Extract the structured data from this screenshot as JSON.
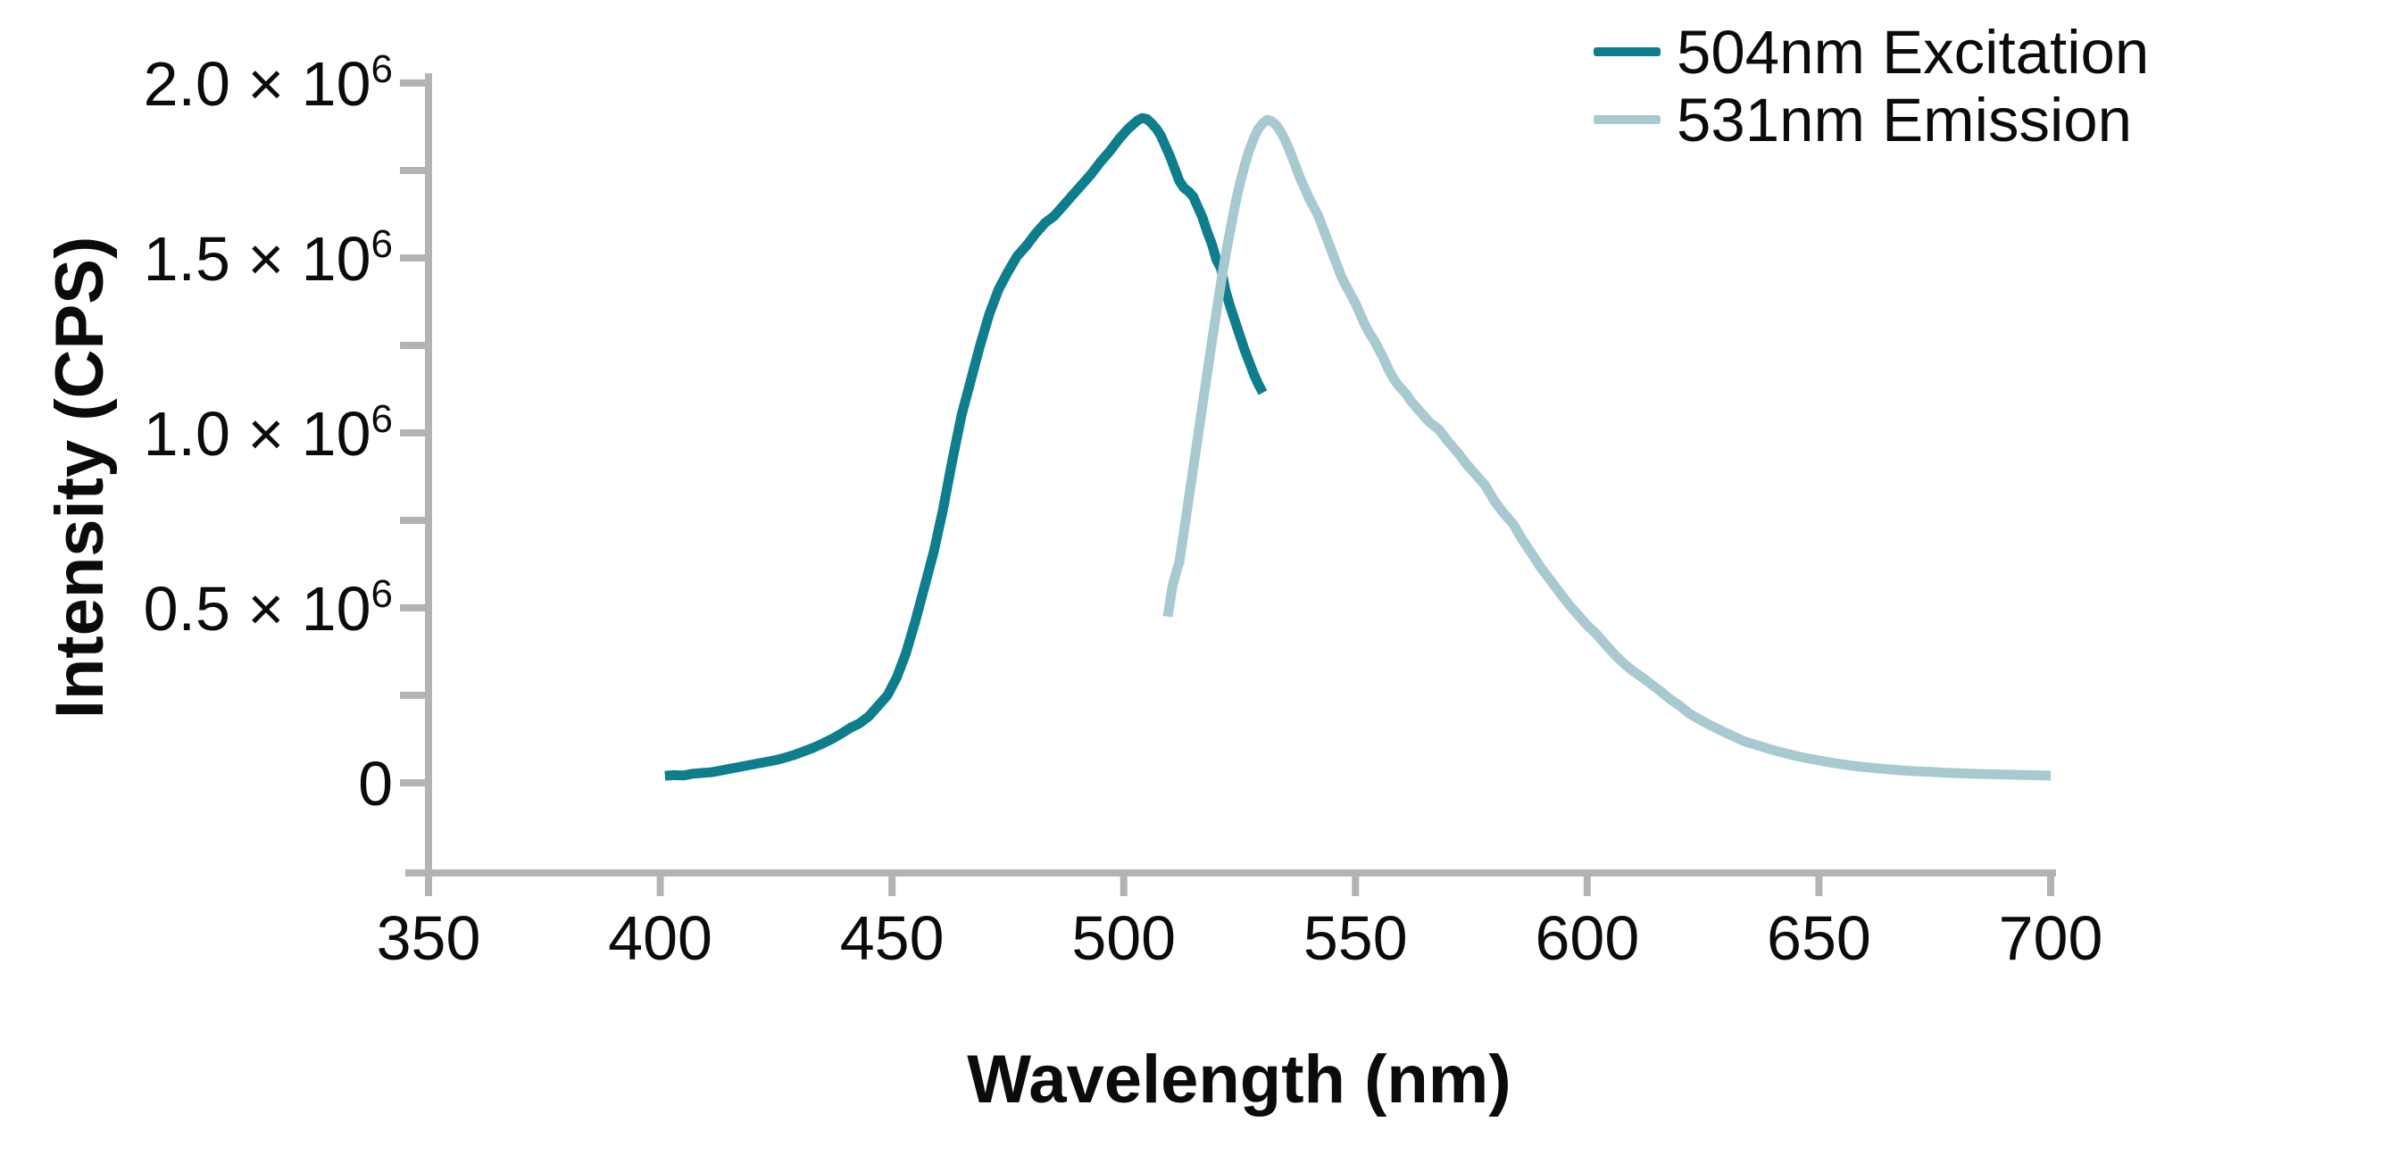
{
  "figure": {
    "background": "#ffffff"
  },
  "chart_data": {
    "type": "line",
    "title": "",
    "xlabel": "Wavelength (nm)",
    "ylabel": "Intensity (CPS)",
    "xlim": [
      350,
      700
    ],
    "ylim": [
      0,
      2000000
    ],
    "grid": false,
    "legend_position": "top-right",
    "axis_color": "#b3b3b3",
    "text_color": "#0b0b0b",
    "x_ticks": [
      {
        "value": 350,
        "label": "350"
      },
      {
        "value": 400,
        "label": "400"
      },
      {
        "value": 450,
        "label": "450"
      },
      {
        "value": 500,
        "label": "500"
      },
      {
        "value": 550,
        "label": "550"
      },
      {
        "value": 600,
        "label": "600"
      },
      {
        "value": 650,
        "label": "650"
      },
      {
        "value": 700,
        "label": "700"
      }
    ],
    "y_ticks": [
      {
        "value": 0,
        "base": "0",
        "exp": ""
      },
      {
        "value": 500000,
        "base": "0.5 × 10",
        "exp": "6"
      },
      {
        "value": 1000000,
        "base": "1.0 × 10",
        "exp": "6"
      },
      {
        "value": 1500000,
        "base": "1.5 × 10",
        "exp": "6"
      },
      {
        "value": 2000000,
        "base": "2.0 × 10",
        "exp": "6"
      }
    ],
    "y_minor_ticks": [
      250000,
      750000,
      1250000,
      1750000
    ],
    "series": [
      {
        "name": "504nm Excitation",
        "color": "#0e7d8c",
        "peak_nm": 504,
        "peak_intensity_cps": 1900000,
        "draw_order": 1,
        "points": [
          [
            401,
            20000
          ],
          [
            403,
            22000
          ],
          [
            405,
            21000
          ],
          [
            407,
            26000
          ],
          [
            409,
            28000
          ],
          [
            411,
            30000
          ],
          [
            413,
            35000
          ],
          [
            415,
            40000
          ],
          [
            417,
            45000
          ],
          [
            419,
            50000
          ],
          [
            421,
            55000
          ],
          [
            423,
            60000
          ],
          [
            425,
            65000
          ],
          [
            427,
            72000
          ],
          [
            429,
            80000
          ],
          [
            431,
            90000
          ],
          [
            433,
            100000
          ],
          [
            435,
            112000
          ],
          [
            437,
            125000
          ],
          [
            439,
            140000
          ],
          [
            441,
            157000
          ],
          [
            443,
            170000
          ],
          [
            445,
            190000
          ],
          [
            447,
            220000
          ],
          [
            449,
            250000
          ],
          [
            451,
            300000
          ],
          [
            453,
            370000
          ],
          [
            455,
            460000
          ],
          [
            457,
            560000
          ],
          [
            459,
            660000
          ],
          [
            461,
            780000
          ],
          [
            463,
            920000
          ],
          [
            465,
            1050000
          ],
          [
            467,
            1150000
          ],
          [
            469,
            1250000
          ],
          [
            471,
            1340000
          ],
          [
            473,
            1410000
          ],
          [
            475,
            1460000
          ],
          [
            477,
            1505000
          ],
          [
            479,
            1535000
          ],
          [
            481,
            1570000
          ],
          [
            483,
            1600000
          ],
          [
            485,
            1620000
          ],
          [
            487,
            1650000
          ],
          [
            489,
            1680000
          ],
          [
            491,
            1710000
          ],
          [
            493,
            1740000
          ],
          [
            495,
            1775000
          ],
          [
            497,
            1805000
          ],
          [
            499,
            1840000
          ],
          [
            501,
            1870000
          ],
          [
            503,
            1893000
          ],
          [
            504,
            1900000
          ],
          [
            505,
            1897000
          ],
          [
            506,
            1885000
          ],
          [
            507,
            1870000
          ],
          [
            508,
            1850000
          ],
          [
            509,
            1820000
          ],
          [
            510,
            1790000
          ],
          [
            511,
            1755000
          ],
          [
            512,
            1720000
          ],
          [
            513,
            1700000
          ],
          [
            514,
            1690000
          ],
          [
            515,
            1675000
          ],
          [
            516,
            1645000
          ],
          [
            517,
            1615000
          ],
          [
            518,
            1575000
          ],
          [
            519,
            1540000
          ],
          [
            520,
            1495000
          ],
          [
            521,
            1470000
          ],
          [
            522,
            1405000
          ],
          [
            523,
            1360000
          ],
          [
            524,
            1320000
          ],
          [
            525,
            1280000
          ],
          [
            526,
            1240000
          ],
          [
            527,
            1205000
          ],
          [
            528,
            1170000
          ],
          [
            529,
            1140000
          ],
          [
            530,
            1115000
          ]
        ]
      },
      {
        "name": "531nm Emission",
        "color": "#a7c9d0",
        "peak_nm": 531,
        "peak_intensity_cps": 1895000,
        "draw_order": 2,
        "points": [
          [
            509.5,
            475000
          ],
          [
            510.5,
            560000
          ],
          [
            511.5,
            610000
          ],
          [
            512,
            630000
          ],
          [
            513,
            720000
          ],
          [
            514,
            810000
          ],
          [
            515,
            900000
          ],
          [
            516,
            990000
          ],
          [
            517,
            1080000
          ],
          [
            518,
            1170000
          ],
          [
            519,
            1260000
          ],
          [
            520,
            1345000
          ],
          [
            521,
            1430000
          ],
          [
            522,
            1510000
          ],
          [
            523,
            1580000
          ],
          [
            524,
            1650000
          ],
          [
            525,
            1710000
          ],
          [
            526,
            1760000
          ],
          [
            527,
            1805000
          ],
          [
            528,
            1840000
          ],
          [
            529,
            1868000
          ],
          [
            530,
            1885000
          ],
          [
            531,
            1895000
          ],
          [
            532,
            1890000
          ],
          [
            533,
            1878000
          ],
          [
            534,
            1858000
          ],
          [
            535,
            1832000
          ],
          [
            536,
            1800000
          ],
          [
            537,
            1765000
          ],
          [
            538,
            1730000
          ],
          [
            539,
            1700000
          ],
          [
            540,
            1670000
          ],
          [
            541,
            1645000
          ],
          [
            542,
            1620000
          ],
          [
            543,
            1585000
          ],
          [
            544,
            1550000
          ],
          [
            545,
            1515000
          ],
          [
            546,
            1480000
          ],
          [
            547,
            1445000
          ],
          [
            548,
            1420000
          ],
          [
            549,
            1395000
          ],
          [
            550,
            1370000
          ],
          [
            551,
            1340000
          ],
          [
            552,
            1310000
          ],
          [
            553,
            1285000
          ],
          [
            554,
            1265000
          ],
          [
            555,
            1240000
          ],
          [
            556,
            1215000
          ],
          [
            557,
            1185000
          ],
          [
            558,
            1160000
          ],
          [
            559,
            1140000
          ],
          [
            560,
            1125000
          ],
          [
            561,
            1110000
          ],
          [
            562,
            1090000
          ],
          [
            563,
            1075000
          ],
          [
            564,
            1060000
          ],
          [
            566,
            1030000
          ],
          [
            568,
            1010000
          ],
          [
            570,
            975000
          ],
          [
            572,
            945000
          ],
          [
            574,
            910000
          ],
          [
            576,
            880000
          ],
          [
            578,
            850000
          ],
          [
            580,
            805000
          ],
          [
            582,
            770000
          ],
          [
            584,
            740000
          ],
          [
            586,
            695000
          ],
          [
            588,
            655000
          ],
          [
            590,
            615000
          ],
          [
            592,
            580000
          ],
          [
            594,
            545000
          ],
          [
            596,
            510000
          ],
          [
            598,
            480000
          ],
          [
            600,
            450000
          ],
          [
            602,
            425000
          ],
          [
            604,
            395000
          ],
          [
            606,
            365000
          ],
          [
            608,
            340000
          ],
          [
            610,
            318000
          ],
          [
            612,
            300000
          ],
          [
            614,
            280000
          ],
          [
            616,
            260000
          ],
          [
            618,
            238000
          ],
          [
            620,
            220000
          ],
          [
            622,
            198000
          ],
          [
            624,
            183000
          ],
          [
            626,
            168000
          ],
          [
            628,
            155000
          ],
          [
            630,
            142000
          ],
          [
            632,
            130000
          ],
          [
            634,
            118000
          ],
          [
            636,
            110000
          ],
          [
            638,
            102000
          ],
          [
            640,
            94000
          ],
          [
            642,
            87000
          ],
          [
            644,
            80000
          ],
          [
            646,
            74000
          ],
          [
            648,
            69000
          ],
          [
            650,
            64000
          ],
          [
            653,
            57000
          ],
          [
            656,
            51000
          ],
          [
            659,
            46000
          ],
          [
            662,
            42000
          ],
          [
            665,
            38500
          ],
          [
            668,
            35500
          ],
          [
            671,
            33000
          ],
          [
            674,
            31000
          ],
          [
            677,
            29000
          ],
          [
            680,
            27500
          ],
          [
            683,
            26000
          ],
          [
            686,
            25000
          ],
          [
            689,
            24000
          ],
          [
            692,
            23000
          ],
          [
            695,
            22000
          ],
          [
            698,
            21000
          ],
          [
            700,
            20500
          ]
        ]
      }
    ]
  }
}
